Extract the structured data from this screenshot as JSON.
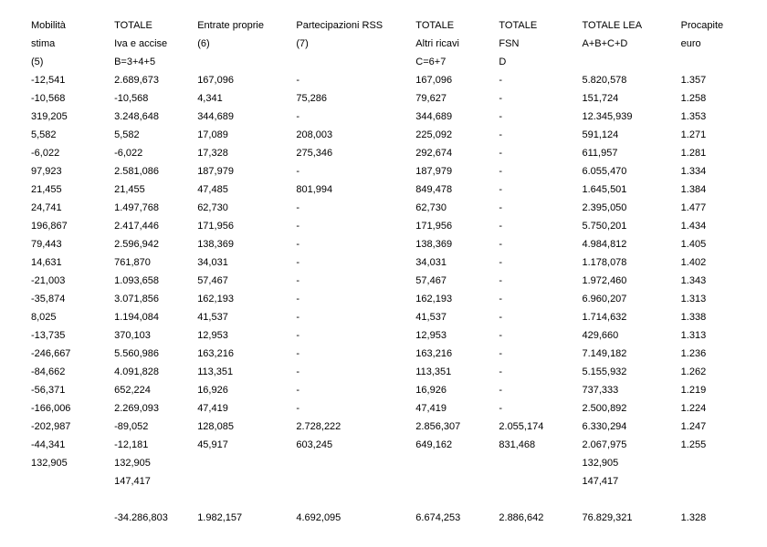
{
  "table": {
    "header1": [
      "Mobilità",
      "TOTALE",
      "Entrate proprie",
      "Partecipazioni RSS",
      "TOTALE",
      "TOTALE",
      "TOTALE LEA",
      "Procapite"
    ],
    "header2": [
      "stima",
      "Iva e accise",
      "(6)",
      "(7)",
      "Altri ricavi",
      "FSN",
      "A+B+C+D",
      "euro"
    ],
    "header3": [
      "(5)",
      "B=3+4+5",
      "",
      "",
      "C=6+7",
      "D",
      "",
      ""
    ],
    "rows": [
      [
        "-12,541",
        "2.689,673",
        "167,096",
        "-",
        "167,096",
        "-",
        "5.820,578",
        "1.357"
      ],
      [
        "-10,568",
        "-10,568",
        "4,341",
        "75,286",
        "79,627",
        "-",
        "151,724",
        "1.258"
      ],
      [
        "319,205",
        "3.248,648",
        "344,689",
        "-",
        "344,689",
        "-",
        "12.345,939",
        "1.353"
      ],
      [
        "5,582",
        "5,582",
        "17,089",
        "208,003",
        "225,092",
        "-",
        "591,124",
        "1.271"
      ],
      [
        "-6,022",
        "-6,022",
        "17,328",
        "275,346",
        "292,674",
        "-",
        "611,957",
        "1.281"
      ],
      [
        "97,923",
        "2.581,086",
        "187,979",
        "-",
        "187,979",
        "-",
        "6.055,470",
        "1.334"
      ],
      [
        "21,455",
        "21,455",
        "47,485",
        "801,994",
        "849,478",
        "-",
        "1.645,501",
        "1.384"
      ],
      [
        "24,741",
        "1.497,768",
        "62,730",
        "-",
        "62,730",
        "-",
        "2.395,050",
        "1.477"
      ],
      [
        "196,867",
        "2.417,446",
        "171,956",
        "-",
        "171,956",
        "-",
        "5.750,201",
        "1.434"
      ],
      [
        "79,443",
        "2.596,942",
        "138,369",
        "-",
        "138,369",
        "-",
        "4.984,812",
        "1.405"
      ],
      [
        "14,631",
        "761,870",
        "34,031",
        "-",
        "34,031",
        "-",
        "1.178,078",
        "1.402"
      ],
      [
        "-21,003",
        "1.093,658",
        "57,467",
        "-",
        "57,467",
        "-",
        "1.972,460",
        "1.343"
      ],
      [
        "-35,874",
        "3.071,856",
        "162,193",
        "-",
        "162,193",
        "-",
        "6.960,207",
        "1.313"
      ],
      [
        "8,025",
        "1.194,084",
        "41,537",
        "-",
        "41,537",
        "-",
        "1.714,632",
        "1.338"
      ],
      [
        "-13,735",
        "370,103",
        "12,953",
        "-",
        "12,953",
        "-",
        "429,660",
        "1.313"
      ],
      [
        "-246,667",
        "5.560,986",
        "163,216",
        "-",
        "163,216",
        "-",
        "7.149,182",
        "1.236"
      ],
      [
        "-84,662",
        "4.091,828",
        "113,351",
        "-",
        "113,351",
        "-",
        "5.155,932",
        "1.262"
      ],
      [
        "-56,371",
        "652,224",
        "16,926",
        "-",
        "16,926",
        "-",
        "737,333",
        "1.219"
      ],
      [
        "-166,006",
        "2.269,093",
        "47,419",
        "-",
        "47,419",
        "-",
        "2.500,892",
        "1.224"
      ],
      [
        "-202,987",
        "-89,052",
        "128,085",
        "2.728,222",
        "2.856,307",
        "2.055,174",
        "6.330,294",
        "1.247"
      ],
      [
        "-44,341",
        "-12,181",
        "45,917",
        "603,245",
        "649,162",
        "831,468",
        "2.067,975",
        "1.255"
      ],
      [
        "132,905",
        "132,905",
        "",
        "",
        "",
        "",
        "132,905",
        ""
      ],
      [
        "",
        "147,417",
        "",
        "",
        "",
        "",
        "147,417",
        ""
      ]
    ],
    "totals": [
      "",
      "-34.286,803",
      "1.982,157",
      "4.692,095",
      "6.674,253",
      "2.886,642",
      "76.829,321",
      "1.328"
    ]
  }
}
